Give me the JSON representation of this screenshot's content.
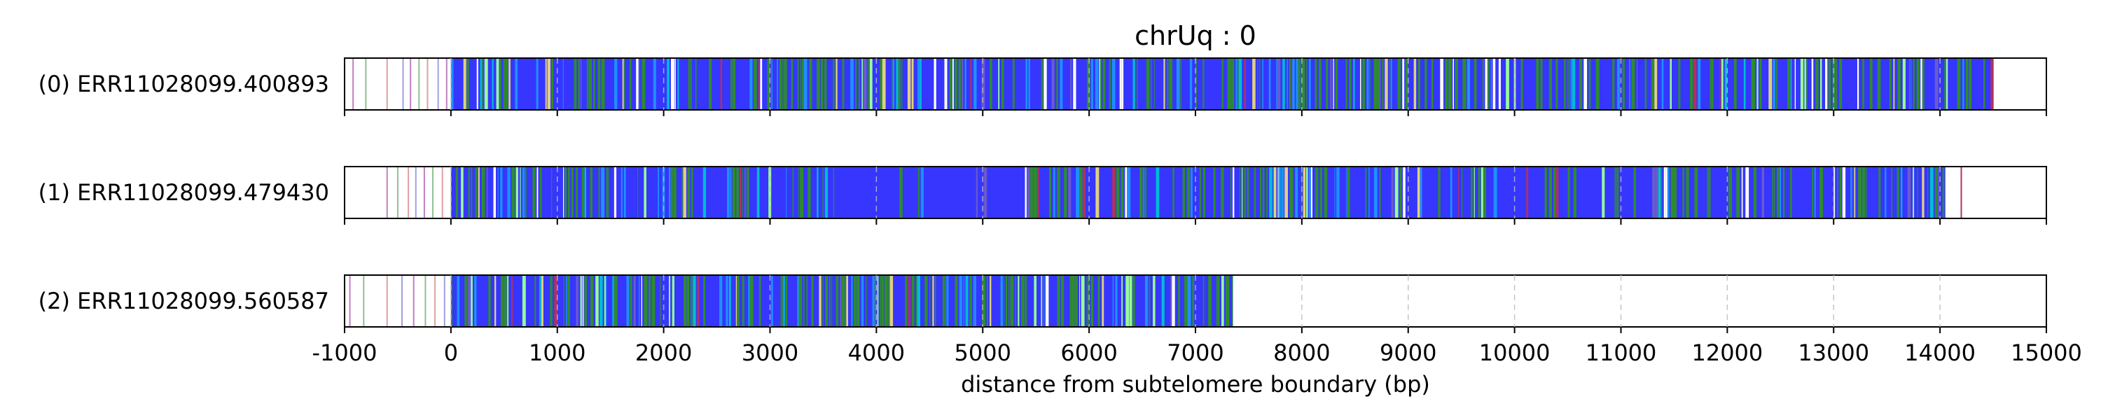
{
  "chart_data": {
    "type": "bar",
    "title": "chrUq : 0",
    "xlabel": "distance from subtelomere boundary (bp)",
    "xlim": [
      -1000,
      15000
    ],
    "x_ticks": [
      -1000,
      0,
      1000,
      2000,
      3000,
      4000,
      5000,
      6000,
      7000,
      8000,
      9000,
      10000,
      11000,
      12000,
      13000,
      14000,
      15000
    ],
    "grid": "vertical dashed at each 1000 bp",
    "tracks": [
      {
        "label": "(0) ERR11028099.400893",
        "read_start": 0,
        "read_end": 14500,
        "pre_ticks": [
          -920,
          -800,
          -600,
          -450,
          -380,
          -300,
          -220,
          -120,
          -40
        ]
      },
      {
        "label": "(1) ERR11028099.479430",
        "read_start": 0,
        "read_end": 14050,
        "pre_ticks": [
          -600,
          -500,
          -400,
          -330,
          -250,
          -170,
          -80
        ],
        "post_ticks": [
          14200
        ]
      },
      {
        "label": "(2) ERR11028099.560587",
        "read_start": 0,
        "read_end": 7350,
        "pre_ticks": [
          -950,
          -820,
          -600,
          -460,
          -350,
          -240,
          -150,
          -60
        ]
      }
    ],
    "colors": {
      "base": "#3636ff",
      "palette": [
        "#2e8b2e",
        "#1e90ff",
        "#98fb98",
        "#e0d080",
        "#00bcd4",
        "#ffffff",
        "#6a5acd",
        "#b03060",
        "#bebebe"
      ],
      "pre_tick": [
        "#c080c0",
        "#90c090",
        "#e0a0a0",
        "#a0a0e0"
      ]
    }
  }
}
